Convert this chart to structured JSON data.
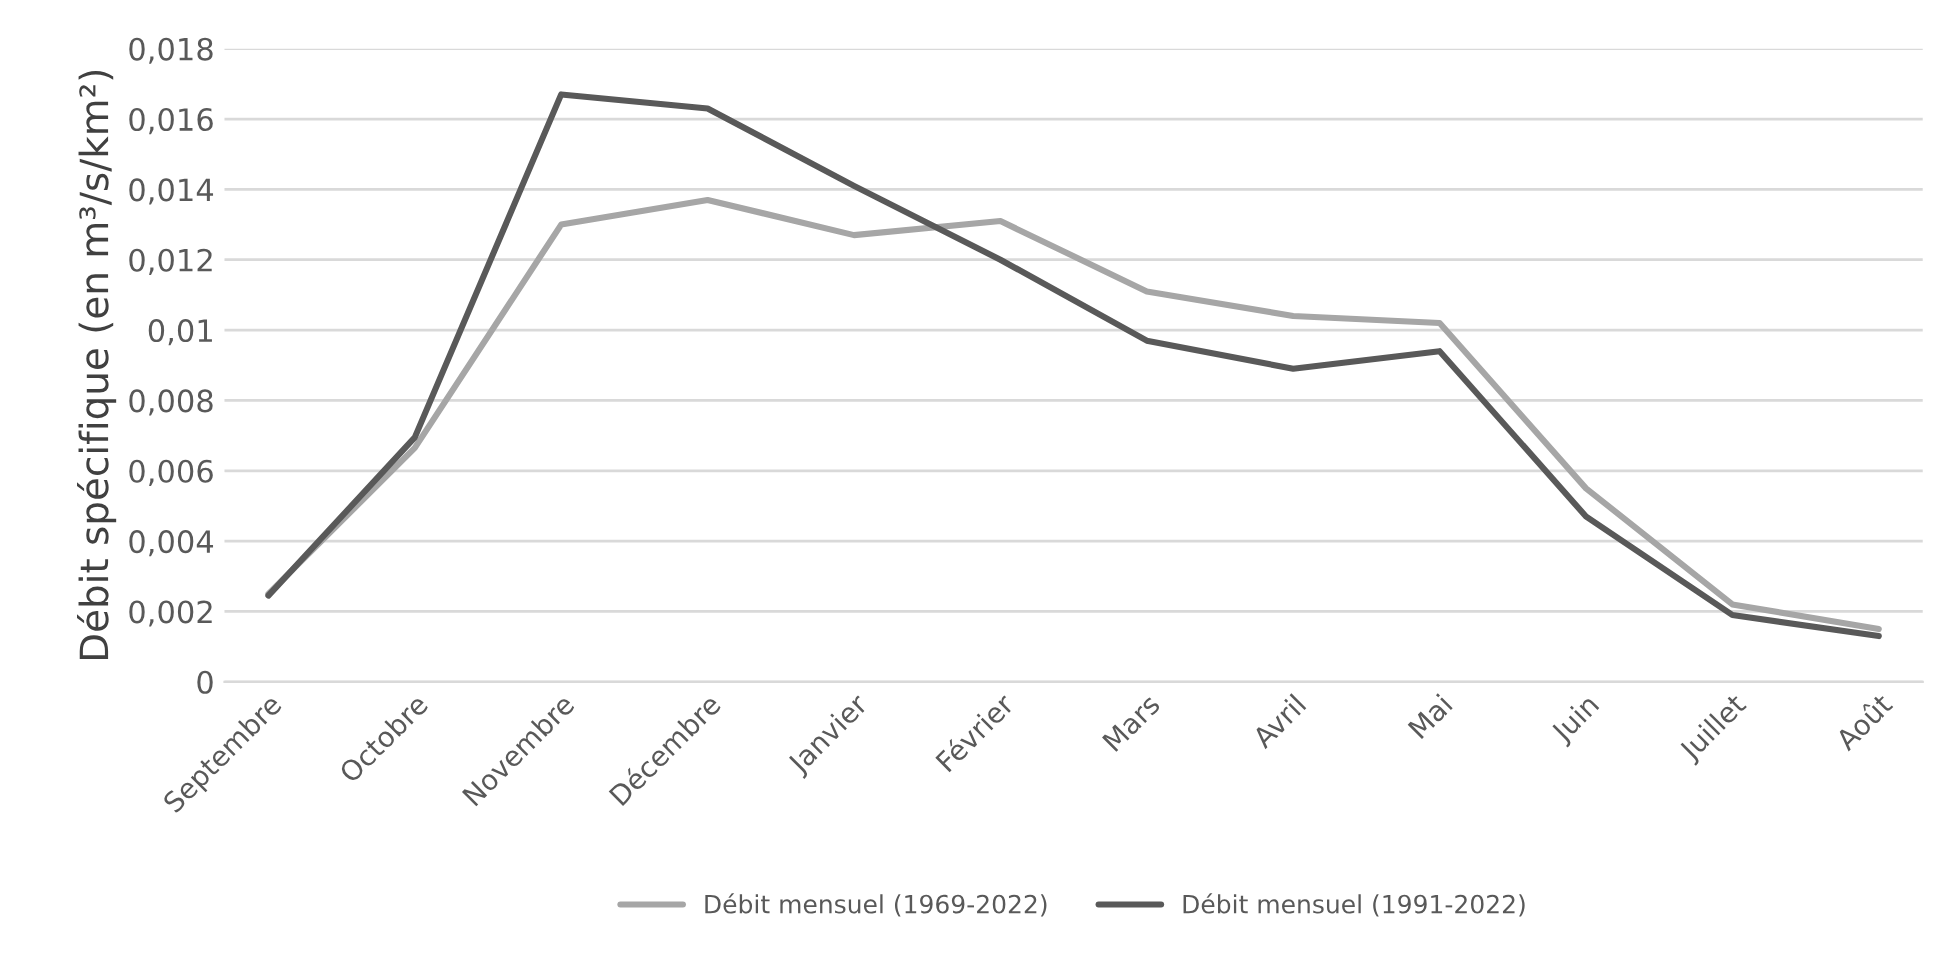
{
  "chart_data": {
    "type": "line",
    "ylabel": "Débit spécifique (en m³/s/km²)",
    "categories": [
      "Septembre",
      "Octobre",
      "Novembre",
      "Décembre",
      "Janvier",
      "Février",
      "Mars",
      "Avril",
      "Mai",
      "Juin",
      "Juillet",
      "Août"
    ],
    "series": [
      {
        "name": "Débit mensuel (1969-2022)",
        "color": "#a6a6a6",
        "values": [
          0.0025,
          0.00665,
          0.013,
          0.0137,
          0.0127,
          0.0131,
          0.0111,
          0.0104,
          0.0102,
          0.0055,
          0.0022,
          0.0015
        ]
      },
      {
        "name": "Débit mensuel (1991-2022)",
        "color": "#595959",
        "values": [
          0.00245,
          0.00695,
          0.0167,
          0.0163,
          0.0141,
          0.012,
          0.0097,
          0.0089,
          0.0094,
          0.0047,
          0.0019,
          0.0013
        ]
      }
    ],
    "ylim": [
      0,
      0.018
    ],
    "yticks": [
      {
        "value": 0,
        "label": "0"
      },
      {
        "value": 0.002,
        "label": "0,002"
      },
      {
        "value": 0.004,
        "label": "0,004"
      },
      {
        "value": 0.006,
        "label": "0,006"
      },
      {
        "value": 0.008,
        "label": "0,008"
      },
      {
        "value": 0.01,
        "label": "0,01"
      },
      {
        "value": 0.012,
        "label": "0,012"
      },
      {
        "value": 0.014,
        "label": "0,014"
      },
      {
        "value": 0.016,
        "label": "0,016"
      },
      {
        "value": 0.018,
        "label": "0,018"
      }
    ],
    "grid": "y",
    "legend": "bottom",
    "marker": "none",
    "line_style": "solid"
  }
}
